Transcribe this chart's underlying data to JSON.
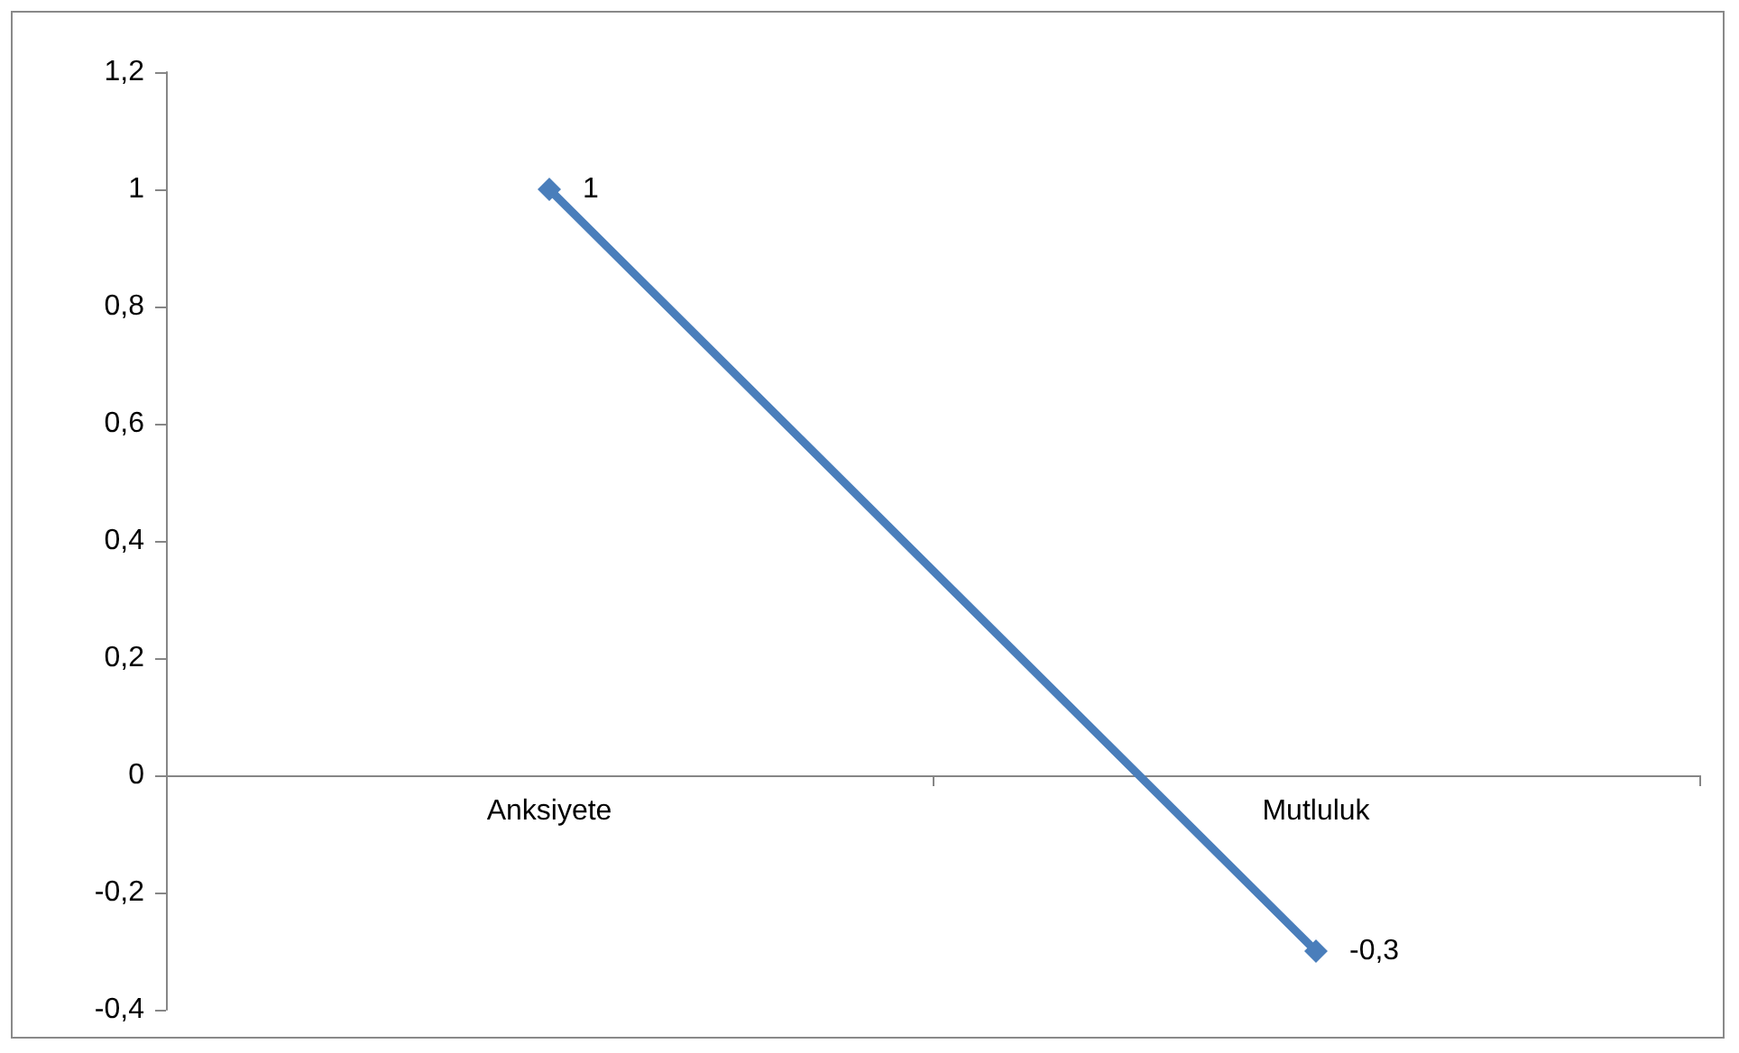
{
  "chart_data": {
    "type": "line",
    "categories": [
      "Anksiyete",
      "Mutluluk"
    ],
    "series": [
      {
        "color": "#4a7ebb",
        "values": [
          1,
          -0.3
        ],
        "value_labels": [
          "1",
          "-0,3"
        ]
      }
    ],
    "ylim": [
      -0.4,
      1.2
    ],
    "yticks": [
      {
        "value": -0.4,
        "label": "-0,4"
      },
      {
        "value": -0.2,
        "label": "-0,2"
      },
      {
        "value": 0,
        "label": "0"
      },
      {
        "value": 0.2,
        "label": "0,2"
      },
      {
        "value": 0.4,
        "label": "0,4"
      },
      {
        "value": 0.6,
        "label": "0,6"
      },
      {
        "value": 0.8,
        "label": "0,8"
      },
      {
        "value": 1,
        "label": "1"
      },
      {
        "value": 1.2,
        "label": "1,2"
      }
    ],
    "marker": "diamond",
    "line_style": "solid"
  }
}
